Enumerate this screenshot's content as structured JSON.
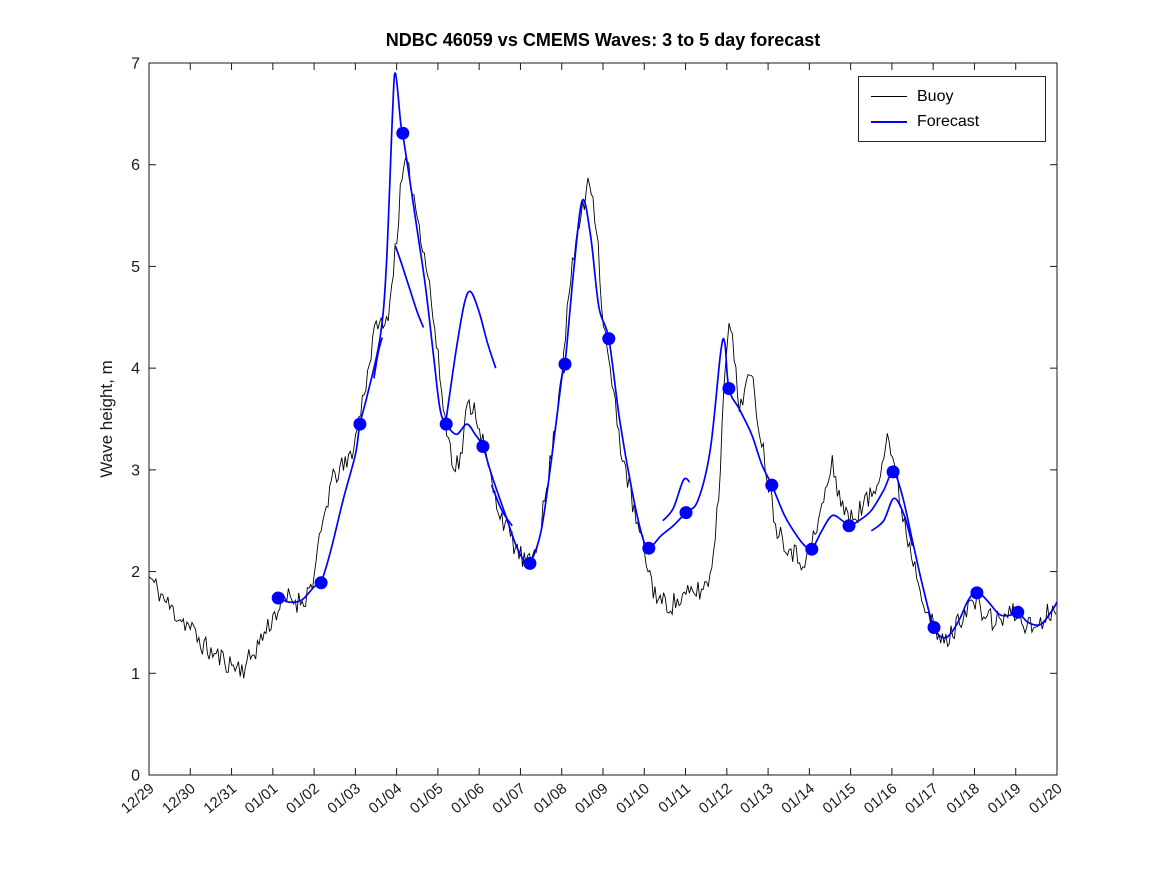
{
  "chart": {
    "title": "NDBC 46059 vs CMEMS Waves: 3 to 5 day forecast",
    "ylabel": "Wave height, m"
  },
  "legend": {
    "items": [
      {
        "label": "Buoy",
        "color": "#000000"
      },
      {
        "label": "Forecast",
        "color": "#0000ff"
      }
    ]
  },
  "chart_data": {
    "type": "line",
    "title": "NDBC 46059 vs CMEMS Waves: 3 to 5 day forecast",
    "xlabel": "",
    "ylabel": "Wave height, m",
    "ylim": [
      0,
      7
    ],
    "yticks": [
      0,
      1,
      2,
      3,
      4,
      5,
      6,
      7
    ],
    "xlim": [
      0,
      22
    ],
    "x_unit": "days since 12/29",
    "xtick_labels": [
      "12/29",
      "12/30",
      "12/31",
      "01/01",
      "01/02",
      "01/03",
      "01/04",
      "01/05",
      "01/06",
      "01/07",
      "01/08",
      "01/09",
      "01/10",
      "01/11",
      "01/12",
      "01/13",
      "01/14",
      "01/15",
      "01/16",
      "01/17",
      "01/18",
      "01/19",
      "01/20"
    ],
    "grid": false,
    "legend_position": "top-right",
    "series": [
      {
        "name": "Buoy",
        "color": "#000000",
        "line_width": 0.9,
        "style": "noisy",
        "noise_amplitude": 0.11,
        "noise_step_days": 0.0417,
        "seed": 11,
        "points": [
          [
            0,
            1.95
          ],
          [
            0.25,
            1.8
          ],
          [
            0.5,
            1.65
          ],
          [
            0.75,
            1.55
          ],
          [
            1,
            1.45
          ],
          [
            1.25,
            1.3
          ],
          [
            1.5,
            1.2
          ],
          [
            1.75,
            1.15
          ],
          [
            2,
            1.08
          ],
          [
            2.3,
            1.05
          ],
          [
            2.6,
            1.25
          ],
          [
            2.8,
            1.4
          ],
          [
            3,
            1.55
          ],
          [
            3.2,
            1.68
          ],
          [
            3.4,
            1.75
          ],
          [
            3.6,
            1.7
          ],
          [
            3.8,
            1.75
          ],
          [
            4,
            1.95
          ],
          [
            4.2,
            2.45
          ],
          [
            4.4,
            2.85
          ],
          [
            4.6,
            3.0
          ],
          [
            4.8,
            3.05
          ],
          [
            5,
            3.3
          ],
          [
            5.2,
            3.75
          ],
          [
            5.4,
            4.2
          ],
          [
            5.55,
            4.5
          ],
          [
            5.7,
            4.35
          ],
          [
            5.85,
            4.7
          ],
          [
            6,
            5.3
          ],
          [
            6.1,
            5.75
          ],
          [
            6.2,
            6.0
          ],
          [
            6.35,
            5.85
          ],
          [
            6.5,
            5.5
          ],
          [
            6.65,
            5.2
          ],
          [
            6.8,
            4.8
          ],
          [
            7,
            4.1
          ],
          [
            7.2,
            3.4
          ],
          [
            7.4,
            3.05
          ],
          [
            7.55,
            3.1
          ],
          [
            7.7,
            3.6
          ],
          [
            7.85,
            3.65
          ],
          [
            8,
            3.45
          ],
          [
            8.2,
            3.05
          ],
          [
            8.4,
            2.7
          ],
          [
            8.6,
            2.5
          ],
          [
            8.8,
            2.3
          ],
          [
            9,
            2.15
          ],
          [
            9.2,
            2.05
          ],
          [
            9.4,
            2.3
          ],
          [
            9.6,
            2.7
          ],
          [
            9.8,
            3.3
          ],
          [
            10,
            4.0
          ],
          [
            10.2,
            4.8
          ],
          [
            10.4,
            5.4
          ],
          [
            10.55,
            5.6
          ],
          [
            10.65,
            5.95
          ],
          [
            10.85,
            5.4
          ],
          [
            11,
            4.45
          ],
          [
            11.2,
            3.9
          ],
          [
            11.4,
            3.3
          ],
          [
            11.6,
            2.9
          ],
          [
            11.8,
            2.5
          ],
          [
            12,
            2.2
          ],
          [
            12.2,
            1.85
          ],
          [
            12.4,
            1.7
          ],
          [
            12.6,
            1.68
          ],
          [
            12.8,
            1.7
          ],
          [
            13,
            1.75
          ],
          [
            13.2,
            1.8
          ],
          [
            13.4,
            1.82
          ],
          [
            13.6,
            1.95
          ],
          [
            13.8,
            2.7
          ],
          [
            13.95,
            4.0
          ],
          [
            14.05,
            4.55
          ],
          [
            14.15,
            4.2
          ],
          [
            14.3,
            3.6
          ],
          [
            14.45,
            3.85
          ],
          [
            14.6,
            3.9
          ],
          [
            14.8,
            3.4
          ],
          [
            15,
            2.9
          ],
          [
            15.2,
            2.45
          ],
          [
            15.4,
            2.3
          ],
          [
            15.6,
            2.2
          ],
          [
            15.8,
            2.1
          ],
          [
            16,
            2.2
          ],
          [
            16.2,
            2.45
          ],
          [
            16.4,
            2.8
          ],
          [
            16.55,
            3.05
          ],
          [
            16.7,
            2.8
          ],
          [
            16.9,
            2.55
          ],
          [
            17,
            2.5
          ],
          [
            17.2,
            2.6
          ],
          [
            17.4,
            2.7
          ],
          [
            17.6,
            2.8
          ],
          [
            17.8,
            3.2
          ],
          [
            17.9,
            3.35
          ],
          [
            18.05,
            3.05
          ],
          [
            18.2,
            2.7
          ],
          [
            18.4,
            2.3
          ],
          [
            18.6,
            2.0
          ],
          [
            18.8,
            1.7
          ],
          [
            19,
            1.45
          ],
          [
            19.2,
            1.3
          ],
          [
            19.4,
            1.35
          ],
          [
            19.6,
            1.5
          ],
          [
            19.8,
            1.65
          ],
          [
            20,
            1.7
          ],
          [
            20.2,
            1.6
          ],
          [
            20.5,
            1.5
          ],
          [
            20.7,
            1.55
          ],
          [
            21,
            1.6
          ],
          [
            21.2,
            1.5
          ],
          [
            21.4,
            1.45
          ],
          [
            21.6,
            1.5
          ],
          [
            21.8,
            1.6
          ],
          [
            22,
            1.7
          ]
        ]
      },
      {
        "name": "Forecast",
        "color": "#0000ff",
        "line_width": 1.7,
        "style": "smooth",
        "points": [
          [
            3.0,
            1.75
          ],
          [
            3.15,
            1.74
          ],
          [
            3.4,
            1.7
          ],
          [
            3.7,
            1.72
          ],
          [
            4.0,
            1.85
          ],
          [
            4.17,
            1.9
          ],
          [
            4.4,
            2.2
          ],
          [
            4.7,
            2.7
          ],
          [
            5.0,
            3.15
          ],
          [
            5.11,
            3.45
          ],
          [
            5.3,
            3.75
          ],
          [
            5.6,
            4.3
          ],
          [
            5.75,
            5.0
          ],
          [
            5.9,
            6.5
          ],
          [
            5.97,
            6.9
          ],
          [
            6.1,
            6.4
          ],
          [
            6.15,
            6.3
          ],
          [
            6.3,
            5.9
          ],
          [
            6.5,
            5.35
          ],
          [
            6.7,
            4.8
          ],
          [
            6.9,
            4.1
          ],
          [
            7.05,
            3.6
          ],
          [
            7.2,
            3.45
          ],
          [
            7.45,
            3.35
          ],
          [
            7.7,
            3.45
          ],
          [
            7.9,
            3.35
          ],
          [
            8.09,
            3.23
          ],
          [
            8.3,
            2.95
          ],
          [
            8.6,
            2.6
          ],
          [
            8.9,
            2.25
          ],
          [
            9.1,
            2.1
          ],
          [
            9.23,
            2.08
          ],
          [
            9.5,
            2.4
          ],
          [
            9.75,
            3.1
          ],
          [
            10.0,
            3.9
          ],
          [
            10.08,
            4.04
          ],
          [
            10.3,
            5.0
          ],
          [
            10.5,
            5.65
          ],
          [
            10.7,
            5.3
          ],
          [
            10.9,
            4.6
          ],
          [
            11.14,
            4.29
          ],
          [
            11.4,
            3.5
          ],
          [
            11.7,
            2.8
          ],
          [
            11.95,
            2.35
          ],
          [
            12.11,
            2.23
          ],
          [
            12.4,
            2.35
          ],
          [
            12.7,
            2.45
          ],
          [
            13.01,
            2.58
          ],
          [
            13.3,
            2.7
          ],
          [
            13.6,
            3.2
          ],
          [
            13.85,
            4.15
          ],
          [
            13.95,
            4.25
          ],
          [
            14.05,
            3.8
          ],
          [
            14.3,
            3.6
          ],
          [
            14.6,
            3.35
          ],
          [
            14.85,
            3.05
          ],
          [
            15.09,
            2.85
          ],
          [
            15.4,
            2.55
          ],
          [
            15.7,
            2.35
          ],
          [
            15.9,
            2.25
          ],
          [
            16.06,
            2.22
          ],
          [
            16.3,
            2.4
          ],
          [
            16.55,
            2.55
          ],
          [
            16.8,
            2.5
          ],
          [
            16.96,
            2.45
          ],
          [
            17.2,
            2.5
          ],
          [
            17.5,
            2.6
          ],
          [
            17.8,
            2.8
          ],
          [
            18.03,
            2.98
          ],
          [
            18.25,
            2.75
          ],
          [
            18.5,
            2.3
          ],
          [
            18.75,
            1.85
          ],
          [
            19.02,
            1.45
          ],
          [
            19.3,
            1.35
          ],
          [
            19.6,
            1.5
          ],
          [
            19.85,
            1.72
          ],
          [
            20.06,
            1.8
          ],
          [
            20.3,
            1.72
          ],
          [
            20.6,
            1.58
          ],
          [
            20.85,
            1.57
          ],
          [
            21.05,
            1.6
          ],
          [
            21.3,
            1.5
          ],
          [
            21.6,
            1.48
          ],
          [
            21.85,
            1.6
          ],
          [
            22,
            1.7
          ]
        ]
      }
    ],
    "forecast_extra_segments": [
      [
        [
          5.45,
          3.9
        ],
        [
          5.55,
          4.15
        ],
        [
          5.65,
          4.3
        ]
      ],
      [
        [
          5.97,
          5.2
        ],
        [
          6.1,
          5.05
        ],
        [
          6.3,
          4.8
        ],
        [
          6.5,
          4.55
        ],
        [
          6.65,
          4.4
        ]
      ],
      [
        [
          7.2,
          3.5
        ],
        [
          7.45,
          4.2
        ],
        [
          7.65,
          4.65
        ],
        [
          7.8,
          4.75
        ],
        [
          8.0,
          4.55
        ],
        [
          8.2,
          4.25
        ],
        [
          8.4,
          4.0
        ]
      ],
      [
        [
          8.3,
          2.85
        ],
        [
          8.55,
          2.6
        ],
        [
          8.8,
          2.45
        ]
      ],
      [
        [
          12.45,
          2.5
        ],
        [
          12.7,
          2.62
        ],
        [
          12.95,
          2.9
        ],
        [
          13.1,
          2.88
        ]
      ],
      [
        [
          17.5,
          2.4
        ],
        [
          17.8,
          2.5
        ],
        [
          18.05,
          2.72
        ],
        [
          18.3,
          2.55
        ],
        [
          18.5,
          2.25
        ]
      ]
    ],
    "markers": {
      "name": "forecast-start-markers",
      "color": "#0000ff",
      "radius_px": 6.5,
      "points": [
        [
          3.13,
          1.74
        ],
        [
          4.17,
          1.89
        ],
        [
          5.11,
          3.45
        ],
        [
          6.15,
          6.31
        ],
        [
          7.2,
          3.45
        ],
        [
          8.09,
          3.23
        ],
        [
          9.23,
          2.08
        ],
        [
          10.08,
          4.04
        ],
        [
          11.14,
          4.29
        ],
        [
          12.11,
          2.23
        ],
        [
          13.01,
          2.58
        ],
        [
          14.05,
          3.8
        ],
        [
          15.09,
          2.85
        ],
        [
          16.06,
          2.22
        ],
        [
          16.96,
          2.45
        ],
        [
          18.03,
          2.98
        ],
        [
          19.02,
          1.45
        ],
        [
          20.06,
          1.79
        ],
        [
          21.05,
          1.6
        ]
      ]
    }
  }
}
